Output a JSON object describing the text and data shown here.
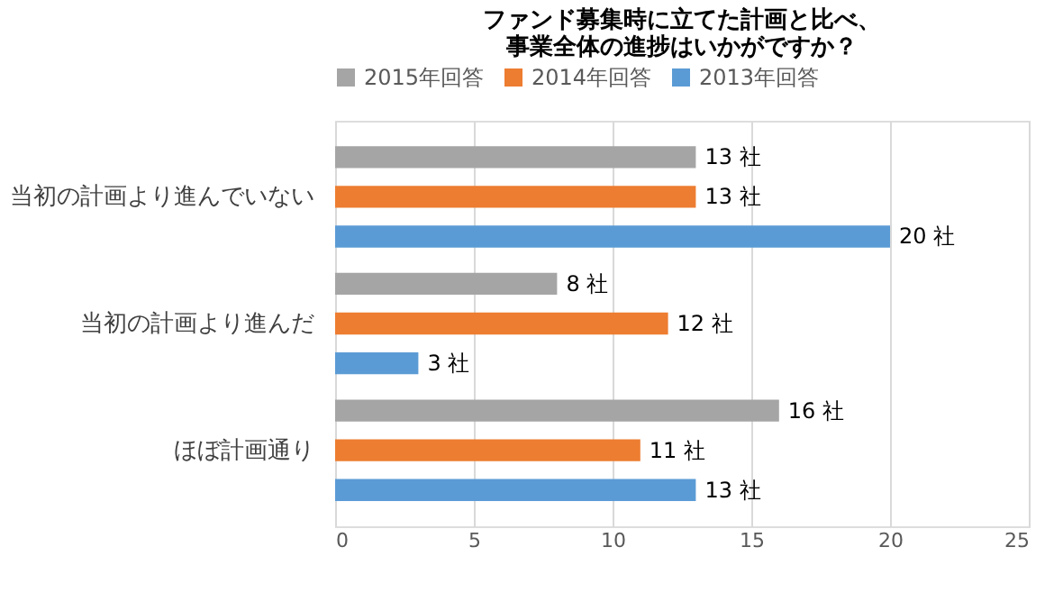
{
  "chart_data": {
    "type": "bar",
    "orientation": "horizontal",
    "title": [
      "ファンド募集時に立てた計画と比べ、",
      "事業全体の進捗はいかがですか？"
    ],
    "categories": [
      "当初の計画より進んでいない",
      "当初の計画より進んだ",
      "ほぼ計画通り"
    ],
    "series": [
      {
        "name": "2015年回答",
        "color": "#a5a5a5",
        "values": [
          13,
          8,
          16
        ],
        "value_labels": [
          "13 社",
          "8 社",
          "16 社"
        ]
      },
      {
        "name": "2014年回答",
        "color": "#ed7d31",
        "values": [
          13,
          12,
          11
        ],
        "value_labels": [
          "13 社",
          "12 社",
          "11 社"
        ]
      },
      {
        "name": "2013年回答",
        "color": "#5b9bd5",
        "values": [
          20,
          3,
          13
        ],
        "value_labels": [
          "20 社",
          "3 社",
          "13 社"
        ]
      }
    ],
    "xlim": [
      0,
      25
    ],
    "xticks": [
      0,
      5,
      10,
      15,
      20,
      25
    ],
    "grid": "x",
    "legend": "top"
  }
}
